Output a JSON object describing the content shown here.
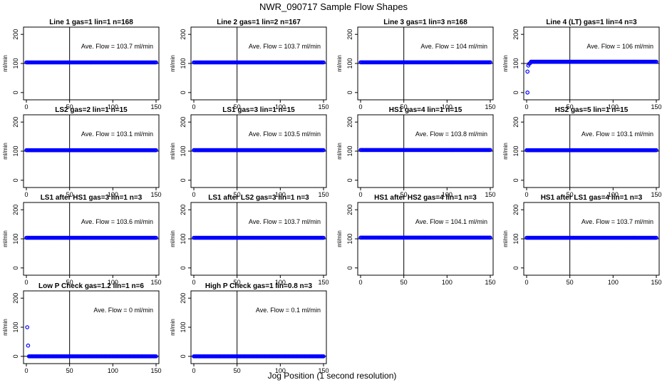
{
  "figure": {
    "title": "NWR_090717  Sample Flow Shapes",
    "xlabel": "Jog Position (1 second resolution)",
    "colors": {
      "points": "#0000ff",
      "lines": "#000000",
      "background": "#ffffff"
    }
  },
  "chart_data": [
    {
      "type": "scatter",
      "title": "Line 1 gas=1 lin=1 n=168",
      "ylabel": "ml/min",
      "xlim": [
        0,
        150
      ],
      "ylim": [
        -25,
        225
      ],
      "xticks": [
        0,
        50,
        100,
        150
      ],
      "yticks": [
        0,
        100,
        200
      ],
      "vline_x": 50,
      "hline_y": 100,
      "annotation": "Ave. Flow =  103.7  ml/min",
      "flow_value": 103.7,
      "points": [
        [
          0,
          103.7
        ],
        [
          150,
          103.7
        ]
      ],
      "dense": true
    },
    {
      "type": "scatter",
      "title": "Line 2 gas=1 lin=2 n=167",
      "ylabel": "ml/min",
      "xlim": [
        0,
        150
      ],
      "ylim": [
        -25,
        225
      ],
      "xticks": [
        0,
        50,
        100,
        150
      ],
      "yticks": [
        0,
        100,
        200
      ],
      "vline_x": 50,
      "hline_y": 100,
      "annotation": "Ave. Flow =  103.7  ml/min",
      "flow_value": 103.7,
      "points": [
        [
          0,
          103.7
        ],
        [
          150,
          103.7
        ]
      ],
      "dense": true
    },
    {
      "type": "scatter",
      "title": "Line 3 gas=1 lin=3 n=168",
      "ylabel": "ml/min",
      "xlim": [
        0,
        150
      ],
      "ylim": [
        -25,
        225
      ],
      "xticks": [
        0,
        50,
        100,
        150
      ],
      "yticks": [
        0,
        100,
        200
      ],
      "vline_x": 50,
      "hline_y": 100,
      "annotation": "Ave. Flow =  104  ml/min",
      "flow_value": 104,
      "points": [
        [
          0,
          104
        ],
        [
          150,
          104
        ]
      ],
      "dense": true
    },
    {
      "type": "scatter",
      "title": "Line 4 (LT) gas=1 lin=4 n=3",
      "ylabel": "ml/min",
      "xlim": [
        0,
        150
      ],
      "ylim": [
        -25,
        225
      ],
      "xticks": [
        0,
        50,
        100,
        150
      ],
      "yticks": [
        0,
        100,
        200
      ],
      "vline_x": 50,
      "hline_y": 100,
      "annotation": "Ave. Flow =  106  ml/min",
      "flow_value": 106,
      "points": [
        [
          1,
          0
        ],
        [
          1,
          72
        ],
        [
          2,
          93
        ],
        [
          3,
          99
        ],
        [
          4,
          101
        ],
        [
          5,
          102
        ],
        [
          150,
          106
        ]
      ],
      "dense": true,
      "dense_from": 5
    },
    {
      "type": "scatter",
      "title": "LS2 gas=2 lin=1 n=15",
      "ylabel": "ml/min",
      "xlim": [
        0,
        150
      ],
      "ylim": [
        -25,
        225
      ],
      "xticks": [
        0,
        50,
        100,
        150
      ],
      "yticks": [
        0,
        100,
        200
      ],
      "vline_x": 50,
      "hline_y": 100,
      "annotation": "Ave. Flow =  103.1  ml/min",
      "flow_value": 103.1,
      "points": [
        [
          0,
          103.1
        ],
        [
          150,
          103.1
        ]
      ],
      "dense": true
    },
    {
      "type": "scatter",
      "title": "LS1 gas=3 lin=1 n=15",
      "ylabel": "ml/min",
      "xlim": [
        0,
        150
      ],
      "ylim": [
        -25,
        225
      ],
      "xticks": [
        0,
        50,
        100,
        150
      ],
      "yticks": [
        0,
        100,
        200
      ],
      "vline_x": 50,
      "hline_y": 100,
      "annotation": "Ave. Flow =  103.5  ml/min",
      "flow_value": 103.5,
      "points": [
        [
          0,
          103.5
        ],
        [
          150,
          103.5
        ]
      ],
      "dense": true
    },
    {
      "type": "scatter",
      "title": "HS1 gas=4 lin=1 n=15",
      "ylabel": "ml/min",
      "xlim": [
        0,
        150
      ],
      "ylim": [
        -25,
        225
      ],
      "xticks": [
        0,
        50,
        100,
        150
      ],
      "yticks": [
        0,
        100,
        200
      ],
      "vline_x": 50,
      "hline_y": 100,
      "annotation": "Ave. Flow =  103.8  ml/min",
      "flow_value": 103.8,
      "points": [
        [
          0,
          103.8
        ],
        [
          150,
          103.8
        ]
      ],
      "dense": true
    },
    {
      "type": "scatter",
      "title": "HS2 gas=5 lin=1 n=15",
      "ylabel": "ml/min",
      "xlim": [
        0,
        150
      ],
      "ylim": [
        -25,
        225
      ],
      "xticks": [
        0,
        50,
        100,
        150
      ],
      "yticks": [
        0,
        100,
        200
      ],
      "vline_x": 50,
      "hline_y": 100,
      "annotation": "Ave. Flow =  103.1  ml/min",
      "flow_value": 103.1,
      "points": [
        [
          0,
          103.1
        ],
        [
          150,
          103.1
        ]
      ],
      "dense": true
    },
    {
      "type": "scatter",
      "title": "LS1 after HS1 gas=3 lin=1 n=3",
      "ylabel": "ml/min",
      "xlim": [
        0,
        150
      ],
      "ylim": [
        -25,
        225
      ],
      "xticks": [
        0,
        50,
        100,
        150
      ],
      "yticks": [
        0,
        100,
        200
      ],
      "vline_x": 50,
      "hline_y": 100,
      "annotation": "Ave. Flow =  103.6  ml/min",
      "flow_value": 103.6,
      "points": [
        [
          0,
          103.6
        ],
        [
          150,
          103.6
        ]
      ],
      "dense": true
    },
    {
      "type": "scatter",
      "title": "LS1 after LS2 gas=3 lin=1 n=3",
      "ylabel": "ml/min",
      "xlim": [
        0,
        150
      ],
      "ylim": [
        -25,
        225
      ],
      "xticks": [
        0,
        50,
        100,
        150
      ],
      "yticks": [
        0,
        100,
        200
      ],
      "vline_x": 50,
      "hline_y": 100,
      "annotation": "Ave. Flow =  103.7  ml/min",
      "flow_value": 103.7,
      "points": [
        [
          0,
          103.7
        ],
        [
          150,
          103.7
        ]
      ],
      "dense": true
    },
    {
      "type": "scatter",
      "title": "HS1 after HS2 gas=4 lin=1 n=3",
      "ylabel": "ml/min",
      "xlim": [
        0,
        150
      ],
      "ylim": [
        -25,
        225
      ],
      "xticks": [
        0,
        50,
        100,
        150
      ],
      "yticks": [
        0,
        100,
        200
      ],
      "vline_x": 50,
      "hline_y": 100,
      "annotation": "Ave. Flow =  104.1  ml/min",
      "flow_value": 104.1,
      "points": [
        [
          0,
          104.1
        ],
        [
          150,
          104.1
        ]
      ],
      "dense": true
    },
    {
      "type": "scatter",
      "title": "HS1 after LS1 gas=4 lin=1 n=3",
      "ylabel": "ml/min",
      "xlim": [
        0,
        150
      ],
      "ylim": [
        -25,
        225
      ],
      "xticks": [
        0,
        50,
        100,
        150
      ],
      "yticks": [
        0,
        100,
        200
      ],
      "vline_x": 50,
      "hline_y": 100,
      "annotation": "Ave. Flow =  103.7  ml/min",
      "flow_value": 103.7,
      "points": [
        [
          0,
          103.7
        ],
        [
          150,
          103.7
        ]
      ],
      "dense": true
    },
    {
      "type": "scatter",
      "title": "Low P Check gas=1.2 lin=1 n=6",
      "ylabel": "ml/min",
      "xlim": [
        0,
        150
      ],
      "ylim": [
        -25,
        225
      ],
      "xticks": [
        0,
        50,
        100,
        150
      ],
      "yticks": [
        0,
        100,
        200
      ],
      "vline_x": 50,
      "hline_y": 0,
      "annotation": "Ave. Flow =  0  ml/min",
      "flow_value": 0,
      "points": [
        [
          1,
          100
        ],
        [
          2,
          37
        ],
        [
          3,
          3
        ],
        [
          150,
          0
        ]
      ],
      "dense": true,
      "dense_from": 3
    },
    {
      "type": "scatter",
      "title": "High P Check gas=1 lin=0.8 n=3",
      "ylabel": "ml/min",
      "xlim": [
        0,
        150
      ],
      "ylim": [
        -25,
        225
      ],
      "xticks": [
        0,
        50,
        100,
        150
      ],
      "yticks": [
        0,
        100,
        200
      ],
      "vline_x": 50,
      "hline_y": 0,
      "annotation": "Ave. Flow =  0.1  ml/min",
      "flow_value": 0.1,
      "points": [
        [
          0,
          0.1
        ],
        [
          150,
          0.1
        ]
      ],
      "dense": true
    }
  ]
}
